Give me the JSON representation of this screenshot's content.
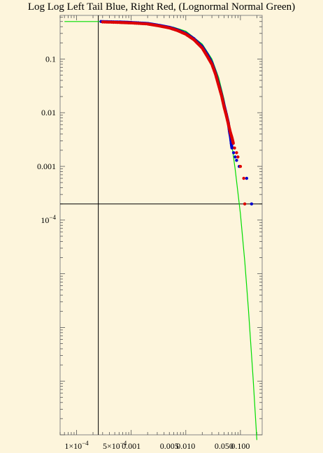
{
  "chart_data": {
    "type": "scatter",
    "title": "Log Log Left Tail Blue, Right Red, (Lognormal Normal Green)",
    "xlabel": "",
    "ylabel": "",
    "x_scale": "log",
    "y_scale": "log",
    "xlim": [
      5e-05,
      0.25
    ],
    "ylim": [
      1e-08,
      0.65
    ],
    "x_ticks": [
      {
        "value": 0.0001,
        "label": "1×10",
        "exp": "−4"
      },
      {
        "value": 0.0005,
        "label": "5×10",
        "exp": "−4"
      },
      {
        "value": 0.001,
        "label": "0.001",
        "exp": ""
      },
      {
        "value": 0.005,
        "label": "0.005",
        "exp": ""
      },
      {
        "value": 0.01,
        "label": "0.010",
        "exp": ""
      },
      {
        "value": 0.05,
        "label": "0.050",
        "exp": ""
      },
      {
        "value": 0.1,
        "label": "0.100",
        "exp": ""
      }
    ],
    "y_ticks": [
      {
        "value": 0.1,
        "label": "0.1",
        "exp": ""
      },
      {
        "value": 0.01,
        "label": "0.01",
        "exp": ""
      },
      {
        "value": 0.001,
        "label": "0.001",
        "exp": ""
      },
      {
        "value": 0.0001,
        "label": "10",
        "exp": "−4"
      }
    ],
    "reference_lines": {
      "x": 0.00025,
      "y": 0.0002
    },
    "series": [
      {
        "color": "#0000cc",
        "points": [
          [
            0.00028,
            0.5
          ],
          [
            0.0006,
            0.49
          ],
          [
            0.001,
            0.48
          ],
          [
            0.002,
            0.46
          ],
          [
            0.003,
            0.43
          ],
          [
            0.005,
            0.39
          ],
          [
            0.007,
            0.35
          ],
          [
            0.01,
            0.3
          ],
          [
            0.014,
            0.24
          ],
          [
            0.02,
            0.17
          ],
          [
            0.025,
            0.12
          ],
          [
            0.03,
            0.085
          ],
          [
            0.035,
            0.055
          ],
          [
            0.04,
            0.034
          ],
          [
            0.045,
            0.022
          ],
          [
            0.05,
            0.014
          ],
          [
            0.055,
            0.0095
          ],
          [
            0.06,
            0.0065
          ],
          [
            0.063,
            0.0045
          ],
          [
            0.066,
            0.0035
          ],
          [
            0.068,
            0.0027
          ],
          [
            0.07,
            0.0022
          ],
          [
            0.075,
            0.0018
          ],
          [
            0.08,
            0.0015
          ],
          [
            0.085,
            0.0013
          ],
          [
            0.095,
            0.001
          ],
          [
            0.13,
            0.0006
          ],
          [
            0.16,
            0.0002
          ]
        ]
      },
      {
        "color": "#dd0000",
        "points": [
          [
            0.0003,
            0.49
          ],
          [
            0.0006,
            0.48
          ],
          [
            0.001,
            0.47
          ],
          [
            0.002,
            0.45
          ],
          [
            0.003,
            0.42
          ],
          [
            0.005,
            0.38
          ],
          [
            0.007,
            0.34
          ],
          [
            0.01,
            0.29
          ],
          [
            0.014,
            0.23
          ],
          [
            0.02,
            0.16
          ],
          [
            0.025,
            0.11
          ],
          [
            0.03,
            0.08
          ],
          [
            0.035,
            0.052
          ],
          [
            0.04,
            0.032
          ],
          [
            0.045,
            0.021
          ],
          [
            0.05,
            0.013
          ],
          [
            0.055,
            0.009
          ],
          [
            0.06,
            0.0062
          ],
          [
            0.065,
            0.0044
          ],
          [
            0.07,
            0.0034
          ],
          [
            0.074,
            0.0027
          ],
          [
            0.078,
            0.0022
          ],
          [
            0.085,
            0.0018
          ],
          [
            0.09,
            0.0015
          ],
          [
            0.1,
            0.001
          ],
          [
            0.115,
            0.0006
          ],
          [
            0.12,
            0.0002
          ]
        ]
      },
      {
        "color": "#00dd00",
        "points": [
          [
            6e-05,
            0.5
          ],
          [
            0.0003,
            0.5
          ],
          [
            0.001,
            0.48
          ],
          [
            0.003,
            0.44
          ],
          [
            0.006,
            0.39
          ],
          [
            0.01,
            0.33
          ],
          [
            0.02,
            0.19
          ],
          [
            0.03,
            0.1
          ],
          [
            0.04,
            0.045
          ],
          [
            0.05,
            0.018
          ],
          [
            0.06,
            0.0068
          ],
          [
            0.07,
            0.0024
          ],
          [
            0.08,
            0.0009
          ],
          [
            0.1,
            0.00013
          ],
          [
            0.12,
            1.7e-05
          ],
          [
            0.14,
            2.2e-06
          ],
          [
            0.17,
            1.2e-07
          ],
          [
            0.2,
            8e-09
          ]
        ]
      }
    ]
  }
}
